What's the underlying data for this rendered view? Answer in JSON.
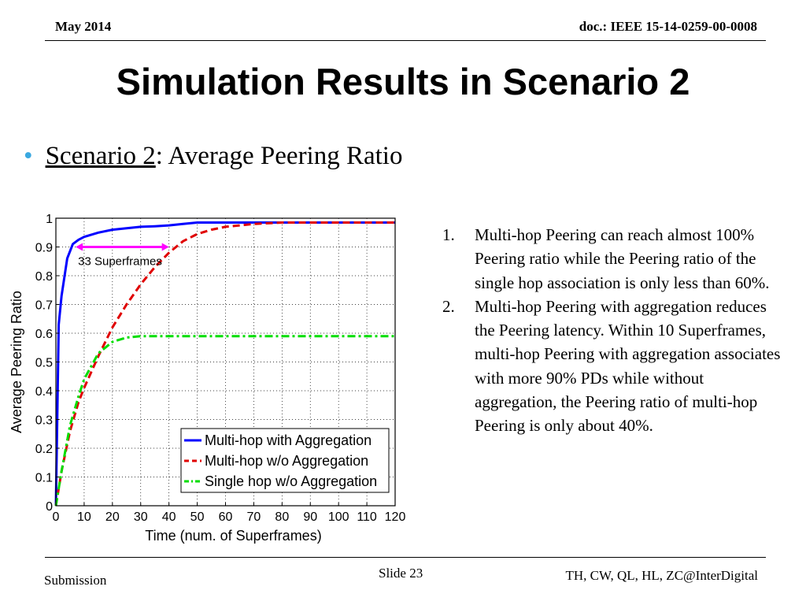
{
  "header": {
    "date": "May 2014",
    "doc": "doc.: IEEE 15-14-0259-00-0008"
  },
  "title": "Simulation Results in Scenario 2",
  "bullet": {
    "underlined": "Scenario 2",
    "rest": ": Average Peering Ratio"
  },
  "notes": [
    {
      "num": "1.",
      "text": "Multi-hop Peering can reach  almost 100% Peering ratio while the Peering ratio of the single hop association is only less than 60%."
    },
    {
      "num": "2.",
      "text": "Multi-hop Peering with aggregation reduces the Peering latency. Within 10 Superframes, multi-hop Peering with aggregation associates with more 90% PDs while without aggregation, the Peering ratio  of multi-hop Peering is only about 40%."
    }
  ],
  "footer": {
    "submission": "Submission",
    "slide": "Slide 23",
    "authors": "TH, CW, QL, HL, ZC@InterDigital"
  },
  "chart_data": {
    "type": "line",
    "xlabel": "Time (num. of Superframes)",
    "ylabel": "Average Peering Ratio",
    "xlim": [
      0,
      120
    ],
    "ylim": [
      0,
      1
    ],
    "xticks": [
      0,
      10,
      20,
      30,
      40,
      50,
      60,
      70,
      80,
      90,
      100,
      110,
      120
    ],
    "yticks": [
      0,
      0.1,
      0.2,
      0.3,
      0.4,
      0.5,
      0.6,
      0.7,
      0.8,
      0.9,
      1
    ],
    "ytick_labels": [
      "0",
      "0.1",
      "0.2",
      "0.3",
      "0.4",
      "0.5",
      "0.6",
      "0.7",
      "0.8",
      "0.9",
      "1"
    ],
    "grid": true,
    "legend_position": "lower-right",
    "series": [
      {
        "name": "Multi-hop with Aggregation",
        "color": "#0000ff",
        "style": "solid",
        "x": [
          0,
          1,
          2,
          4,
          6,
          8,
          10,
          15,
          20,
          25,
          30,
          35,
          40,
          45,
          50,
          60,
          70,
          80,
          90,
          100,
          110,
          120
        ],
        "y": [
          0,
          0.63,
          0.73,
          0.86,
          0.91,
          0.925,
          0.935,
          0.95,
          0.96,
          0.965,
          0.97,
          0.972,
          0.975,
          0.98,
          0.985,
          0.985,
          0.985,
          0.985,
          0.985,
          0.985,
          0.985,
          0.985
        ]
      },
      {
        "name": "Multi-hop w/o Aggregation",
        "color": "#e00000",
        "style": "dashed",
        "x": [
          0,
          2,
          5,
          8,
          10,
          15,
          20,
          25,
          30,
          35,
          40,
          45,
          50,
          55,
          60,
          70,
          80,
          90,
          100,
          110,
          120
        ],
        "y": [
          0,
          0.12,
          0.26,
          0.36,
          0.41,
          0.52,
          0.62,
          0.7,
          0.77,
          0.83,
          0.88,
          0.92,
          0.945,
          0.96,
          0.97,
          0.98,
          0.985,
          0.985,
          0.985,
          0.985,
          0.985
        ]
      },
      {
        "name": "Single hop w/o Aggregation",
        "color": "#00dd00",
        "style": "dashdot",
        "x": [
          0,
          2,
          5,
          8,
          10,
          15,
          20,
          25,
          30,
          35,
          40,
          50,
          60,
          70,
          80,
          90,
          100,
          110,
          120
        ],
        "y": [
          0,
          0.12,
          0.28,
          0.38,
          0.44,
          0.53,
          0.57,
          0.585,
          0.59,
          0.59,
          0.59,
          0.59,
          0.59,
          0.59,
          0.59,
          0.59,
          0.59,
          0.59,
          0.59
        ]
      }
    ],
    "annotations": [
      {
        "text": "33 Superframes",
        "x_from": 7,
        "x_to": 40,
        "y": 0.9,
        "color": "#ff00ff"
      }
    ]
  }
}
